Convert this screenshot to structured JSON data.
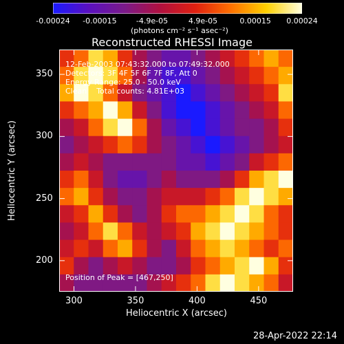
{
  "colorbar": {
    "tick_labels": [
      "-0.00024",
      "-0.00015",
      "-4.9e-05",
      "4.9e-05",
      "0.00015",
      "0.00024"
    ],
    "tick_values": [
      -0.00024,
      -0.00015,
      -4.9e-05,
      4.9e-05,
      0.00015,
      0.00024
    ],
    "unit_label": "(photons cm⁻² s⁻¹ asec⁻²)",
    "colors": [
      "#1a1aff",
      "#5a10c0",
      "#7a1a8a",
      "#b01040",
      "#e02010",
      "#ff7000",
      "#ffd000",
      "#ffffe0"
    ]
  },
  "chart_data": {
    "type": "heatmap",
    "title": "Reconstructed RHESSI Image",
    "xlabel": "Heliocentric X (arcsec)",
    "ylabel": "Heliocentric Y (arcsec)",
    "xlim": [
      288,
      478
    ],
    "ylim": [
      175,
      370
    ],
    "x_ticks": [
      300,
      350,
      400,
      450
    ],
    "y_ticks": [
      200,
      250,
      300,
      350
    ],
    "colormap_range": [
      -0.00024,
      0.00024
    ],
    "grid": [
      [
        0.6,
        0.7,
        0.9,
        0.8,
        0.6,
        0.4,
        0.3,
        0.2,
        0.2,
        0.3,
        0.4,
        0.5,
        0.6,
        0.7,
        0.8,
        0.7
      ],
      [
        0.7,
        0.9,
        1.0,
        0.9,
        0.7,
        0.4,
        0.2,
        0.1,
        0.1,
        0.2,
        0.3,
        0.4,
        0.5,
        0.6,
        0.7,
        0.8
      ],
      [
        0.8,
        1.0,
        0.9,
        0.7,
        0.5,
        0.3,
        0.2,
        0.1,
        0.0,
        0.1,
        0.2,
        0.3,
        0.4,
        0.5,
        0.6,
        0.9
      ],
      [
        0.6,
        0.7,
        0.8,
        1.0,
        0.8,
        0.5,
        0.3,
        0.1,
        0.0,
        0.0,
        0.1,
        0.2,
        0.3,
        0.4,
        0.5,
        0.7
      ],
      [
        0.4,
        0.5,
        0.7,
        0.9,
        1.0,
        0.7,
        0.4,
        0.2,
        0.1,
        0.0,
        0.1,
        0.2,
        0.3,
        0.3,
        0.4,
        0.6
      ],
      [
        0.3,
        0.4,
        0.5,
        0.6,
        0.7,
        0.6,
        0.4,
        0.3,
        0.2,
        0.1,
        0.0,
        0.1,
        0.2,
        0.3,
        0.4,
        0.5
      ],
      [
        0.4,
        0.5,
        0.4,
        0.3,
        0.3,
        0.3,
        0.3,
        0.3,
        0.2,
        0.2,
        0.1,
        0.2,
        0.3,
        0.5,
        0.6,
        0.7
      ],
      [
        0.6,
        0.7,
        0.5,
        0.3,
        0.2,
        0.2,
        0.3,
        0.4,
        0.3,
        0.3,
        0.3,
        0.4,
        0.6,
        0.8,
        0.9,
        1.0
      ],
      [
        0.7,
        0.8,
        0.6,
        0.4,
        0.3,
        0.3,
        0.4,
        0.5,
        0.5,
        0.5,
        0.6,
        0.7,
        0.9,
        1.0,
        0.9,
        0.8
      ],
      [
        0.5,
        0.6,
        0.8,
        0.6,
        0.4,
        0.3,
        0.4,
        0.6,
        0.7,
        0.7,
        0.8,
        0.9,
        1.0,
        0.9,
        0.7,
        0.6
      ],
      [
        0.4,
        0.5,
        0.7,
        0.9,
        0.7,
        0.5,
        0.4,
        0.5,
        0.6,
        0.8,
        0.9,
        1.0,
        0.9,
        0.8,
        0.7,
        0.6
      ],
      [
        0.5,
        0.6,
        0.5,
        0.7,
        0.8,
        0.6,
        0.4,
        0.3,
        0.5,
        0.7,
        0.8,
        0.9,
        0.8,
        0.7,
        0.6,
        0.7
      ],
      [
        0.6,
        0.4,
        0.3,
        0.4,
        0.5,
        0.4,
        0.3,
        0.3,
        0.4,
        0.6,
        0.7,
        0.8,
        0.9,
        1.0,
        0.8,
        0.6
      ],
      [
        0.4,
        0.3,
        0.3,
        0.3,
        0.3,
        0.3,
        0.4,
        0.5,
        0.6,
        0.7,
        0.9,
        1.0,
        0.9,
        0.8,
        0.7,
        0.5
      ]
    ]
  },
  "info": {
    "line1": "12-Feb-2003 07:43:32.000 to 07:49:32.000",
    "line2": "Detectors: 3F 4F 5F 6F 7F 8F, Att 0",
    "line3": "Energy Range: 25.0 - 50.0 keV",
    "line4": "Clean    Total counts: 4.81E+03",
    "peak": "Position of Peak = [467,250]"
  },
  "timestamp": "28-Apr-2022 22:14"
}
